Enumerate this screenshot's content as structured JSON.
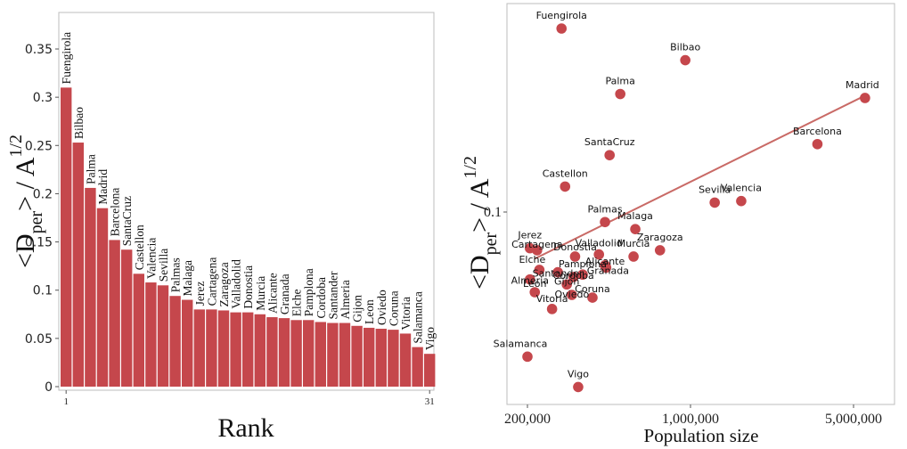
{
  "colors": {
    "bar": "#c5474c",
    "point": "#c5474c",
    "fit_line": "#c96a66",
    "frame": "#bdbdbd",
    "axis_text": "#222222"
  },
  "chart_data": [
    {
      "type": "bar",
      "title": "",
      "xlabel": "Rank",
      "ylabel_main": "<D",
      "ylabel_sub": "per",
      "ylabel_rest": "> / A",
      "ylabel_sup": "1/2",
      "ylim": [
        0,
        0.38
      ],
      "yticks": [
        0,
        0.05,
        0.1,
        0.15,
        0.2,
        0.25,
        0.3,
        0.35
      ],
      "ytick_labels": [
        "0",
        "0.05",
        "0.1",
        "0.15",
        "0.2",
        "0.25",
        "0.3",
        "0.35"
      ],
      "xtick_labels": [
        "1",
        "31"
      ],
      "categories": [
        "Fuengirola",
        "Bilbao",
        "Palma",
        "Madrid",
        "Barcelona",
        "SantaCruz",
        "Castellon",
        "Valencia",
        "Sevilla",
        "Palmas",
        "Malaga",
        "Jerez",
        "Cartagena",
        "Zaragoza",
        "Valladolid",
        "Donostia",
        "Murcia",
        "Alicante",
        "Granada",
        "Elche",
        "Pamplona",
        "Cordoba",
        "Santander",
        "Almeria",
        "Gijon",
        "Leon",
        "Oviedo",
        "Coruna",
        "Vitoria",
        "Salamanca",
        "Vigo"
      ],
      "values": [
        0.31,
        0.253,
        0.206,
        0.185,
        0.152,
        0.142,
        0.117,
        0.108,
        0.105,
        0.094,
        0.09,
        0.08,
        0.08,
        0.079,
        0.077,
        0.077,
        0.075,
        0.072,
        0.071,
        0.069,
        0.069,
        0.067,
        0.066,
        0.066,
        0.063,
        0.061,
        0.06,
        0.059,
        0.055,
        0.041,
        0.034
      ]
    },
    {
      "type": "scatter",
      "title": "",
      "xlabel": "Population size",
      "ylabel_main": "<D",
      "ylabel_sub": "per",
      "ylabel_rest": "> / A",
      "ylabel_sup": "1/2",
      "x_scale": "log",
      "y_scale": "log",
      "xlim": [
        170000,
        7000000
      ],
      "ylim": [
        0.028,
        0.36
      ],
      "xticks": [
        200000,
        1000000,
        5000000
      ],
      "xtick_labels": [
        "200,000",
        "1,000,000",
        "5,000,000"
      ],
      "yticks": [
        0.1
      ],
      "ytick_labels": [
        "0.1"
      ],
      "fit_line": {
        "x": [
          215000,
          5600000
        ],
        "y": [
          0.075,
          0.205
        ]
      },
      "points": [
        {
          "name": "Fuengirola",
          "x": 280000,
          "y": 0.31
        },
        {
          "name": "Bilbao",
          "x": 950000,
          "y": 0.255
        },
        {
          "name": "Palma",
          "x": 500000,
          "y": 0.207
        },
        {
          "name": "Madrid",
          "x": 5600000,
          "y": 0.202
        },
        {
          "name": "Barcelona",
          "x": 3500000,
          "y": 0.152
        },
        {
          "name": "SantaCruz",
          "x": 450000,
          "y": 0.142
        },
        {
          "name": "Castellon",
          "x": 290000,
          "y": 0.117
        },
        {
          "name": "Valencia",
          "x": 1650000,
          "y": 0.107
        },
        {
          "name": "Sevilla",
          "x": 1270000,
          "y": 0.106
        },
        {
          "name": "Palmas",
          "x": 430000,
          "y": 0.094
        },
        {
          "name": "Malaga",
          "x": 580000,
          "y": 0.09
        },
        {
          "name": "Jerez",
          "x": 205000,
          "y": 0.08
        },
        {
          "name": "Cartagena",
          "x": 220000,
          "y": 0.079
        },
        {
          "name": "Zaragoza",
          "x": 740000,
          "y": 0.079
        },
        {
          "name": "Valladolid",
          "x": 405000,
          "y": 0.077
        },
        {
          "name": "Donostia",
          "x": 320000,
          "y": 0.076
        },
        {
          "name": "Murcia",
          "x": 570000,
          "y": 0.076
        },
        {
          "name": "Alicante",
          "x": 430000,
          "y": 0.072
        },
        {
          "name": "Granada",
          "x": 435000,
          "y": 0.071
        },
        {
          "name": "Elche",
          "x": 225000,
          "y": 0.07
        },
        {
          "name": "Pamplona",
          "x": 345000,
          "y": 0.068
        },
        {
          "name": "Cordoba",
          "x": 315000,
          "y": 0.067
        },
        {
          "name": "Santander",
          "x": 270000,
          "y": 0.069
        },
        {
          "name": "Almeria",
          "x": 205000,
          "y": 0.066
        },
        {
          "name": "Gijon",
          "x": 295000,
          "y": 0.064
        },
        {
          "name": "Leon",
          "x": 215000,
          "y": 0.061
        },
        {
          "name": "Oviedo",
          "x": 310000,
          "y": 0.06
        },
        {
          "name": "Coruna",
          "x": 380000,
          "y": 0.059
        },
        {
          "name": "Vitoria",
          "x": 255000,
          "y": 0.055
        },
        {
          "name": "Salamanca",
          "x": 200000,
          "y": 0.041
        },
        {
          "name": "Vigo",
          "x": 330000,
          "y": 0.034
        }
      ]
    }
  ]
}
